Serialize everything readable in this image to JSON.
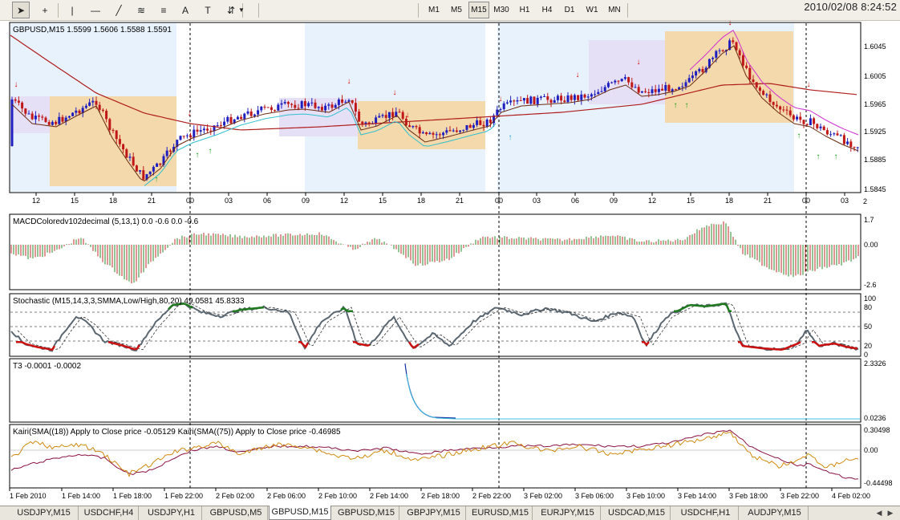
{
  "toolbar": {
    "tools": [
      {
        "name": "cursor-tool",
        "icon": "arrow-cursor-icon",
        "glyph": "➤"
      },
      {
        "name": "crosshair-tool",
        "icon": "crosshair-icon",
        "glyph": "+"
      },
      {
        "name": "vertical-line-tool",
        "icon": "vertical-line-icon",
        "glyph": "|"
      },
      {
        "name": "horizontal-line-tool",
        "icon": "horizontal-line-icon",
        "glyph": "—"
      },
      {
        "name": "trendline-tool",
        "icon": "trendline-icon",
        "glyph": "╱"
      },
      {
        "name": "equidistant-channel-tool",
        "icon": "channel-icon",
        "glyph": "≋"
      },
      {
        "name": "fibonacci-tool",
        "icon": "fibonacci-icon",
        "glyph": "≡"
      },
      {
        "name": "text-tool",
        "icon": "text-A-icon",
        "glyph": "A"
      },
      {
        "name": "text-label-tool",
        "icon": "text-label-icon",
        "glyph": "T"
      },
      {
        "name": "arrows-tool",
        "icon": "arrows-icon",
        "glyph": "⇵"
      }
    ],
    "timeframes": [
      "M1",
      "M5",
      "M15",
      "M30",
      "H1",
      "H4",
      "D1",
      "W1",
      "MN"
    ],
    "active_timeframe": "M15",
    "datetime": "2010/02/08  8:24:52"
  },
  "main_chart": {
    "title": "GBPUSD,M15  1.5599 1.5606 1.5588 1.5591",
    "price_labels": [
      "1.6045",
      "1.6005",
      "1.5965",
      "1.5925",
      "1.5885",
      "1.5845"
    ],
    "hour_labels": [
      "12",
      "15",
      "18",
      "21",
      "00",
      "03",
      "06",
      "09",
      "12",
      "15",
      "18",
      "21",
      "00",
      "03",
      "06",
      "09",
      "12",
      "15",
      "18",
      "21",
      "00",
      "03"
    ],
    "corner_label": "2"
  },
  "macd": {
    "title": "MACDColoredv102decimal (5,13,1) 0.0 -0.6 0.0 -0.6",
    "scale": [
      "1.7",
      "0.00",
      "-2.6"
    ]
  },
  "stochastic": {
    "title": "Stochastic (M15,14,3,3,SMMA,Low/High,80,20) 49.0581 45.8333",
    "scale": [
      "100",
      "80",
      "50",
      "20",
      "0"
    ]
  },
  "t3": {
    "title": "T3 -0.0001 -0.0002",
    "scale": [
      "2.3326",
      "0.0236"
    ]
  },
  "kairi": {
    "title": "Kairi(SMA((18)) Apply to Close price -0.05129  Kairi(SMA((75)) Apply to Close price -0.46985",
    "scale": [
      "0.30498",
      "0.00",
      "-0.44498"
    ]
  },
  "date_labels": [
    "1 Feb 2010",
    "1 Feb 14:00",
    "1 Feb 18:00",
    "1 Feb 22:00",
    "2 Feb 02:00",
    "2 Feb 06:00",
    "2 Feb 10:00",
    "2 Feb 14:00",
    "2 Feb 18:00",
    "2 Feb 22:00",
    "3 Feb 02:00",
    "3 Feb 06:00",
    "3 Feb 10:00",
    "3 Feb 14:00",
    "3 Feb 18:00",
    "3 Feb 22:00",
    "4 Feb 02:00"
  ],
  "tabs": [
    "USDJPY,M15",
    "USDCHF,H4",
    "USDJPY,H1",
    "GBPUSD,M5",
    "GBPUSD,M15",
    "GBPUSD,M15",
    "GBPJPY,M15",
    "EURUSD,M15",
    "EURJPY,M15",
    "USDCAD,M15",
    "USDCHF,H1",
    "AUDJPY,M15"
  ],
  "active_tab": 4,
  "colors": {
    "bull_candle": "#1f1fbf",
    "bear_candle": "#c01818",
    "ma_slow": "#b01c1c",
    "ma_fast": "#6b2a10",
    "stoch_main": "#5a6670",
    "stoch_overbought": "#1f7a1f",
    "stoch_oversold": "#cc1111",
    "t3_line": "#1030a0",
    "kairi_fast": "#d08a10",
    "kairi_slow": "#8a1040",
    "session_blue": "#e8f2fc",
    "session_orange": "#f3d9ac",
    "session_lavender": "#e6e0f6"
  }
}
